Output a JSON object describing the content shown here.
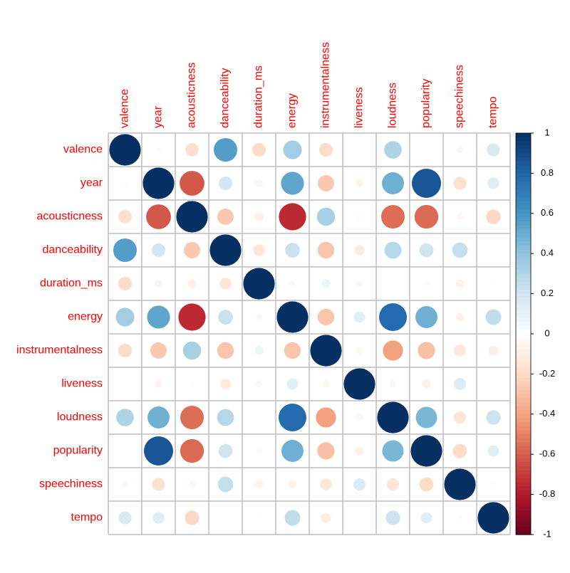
{
  "chart_data": {
    "type": "correlation",
    "variables": [
      "valence",
      "year",
      "acousticness",
      "danceability",
      "duration_ms",
      "energy",
      "instrumentalness",
      "liveness",
      "loudness",
      "popularity",
      "speechiness",
      "tempo"
    ],
    "values": [
      [
        1,
        0.02,
        -0.18,
        0.56,
        -0.19,
        0.35,
        -0.19,
        0.0,
        0.31,
        0.01,
        0.05,
        0.17
      ],
      [
        0.02,
        1,
        -0.62,
        0.19,
        0.06,
        0.53,
        -0.27,
        -0.06,
        0.49,
        0.86,
        -0.17,
        0.14
      ],
      [
        -0.18,
        -0.62,
        1,
        -0.27,
        -0.08,
        -0.75,
        0.33,
        -0.02,
        -0.56,
        -0.57,
        -0.05,
        -0.21
      ],
      [
        0.56,
        0.19,
        -0.27,
        1,
        -0.14,
        0.22,
        -0.28,
        -0.11,
        0.29,
        0.2,
        0.24,
        0.0
      ],
      [
        -0.19,
        0.06,
        -0.08,
        -0.14,
        1,
        0.04,
        0.08,
        0.05,
        0.0,
        0.03,
        -0.07,
        -0.01
      ],
      [
        0.35,
        0.53,
        -0.75,
        0.22,
        0.04,
        1,
        -0.28,
        0.13,
        0.78,
        0.49,
        -0.07,
        0.25
      ],
      [
        -0.19,
        -0.27,
        0.33,
        -0.28,
        0.08,
        -0.28,
        1,
        -0.05,
        -0.41,
        -0.3,
        -0.14,
        -0.1
      ],
      [
        0.0,
        -0.06,
        -0.02,
        -0.11,
        0.05,
        0.13,
        -0.05,
        1,
        0.05,
        -0.08,
        0.15,
        0.01
      ],
      [
        0.31,
        0.49,
        -0.56,
        0.29,
        0.0,
        0.78,
        -0.41,
        0.05,
        1,
        0.46,
        -0.15,
        0.21
      ],
      [
        0.01,
        0.86,
        -0.57,
        0.2,
        0.03,
        0.49,
        -0.3,
        -0.08,
        0.46,
        1,
        -0.2,
        0.13
      ],
      [
        0.05,
        -0.17,
        -0.05,
        0.24,
        -0.07,
        -0.07,
        -0.14,
        0.15,
        -0.15,
        -0.2,
        1,
        0.02
      ],
      [
        0.17,
        0.14,
        -0.21,
        0.0,
        -0.01,
        0.25,
        -0.1,
        0.01,
        0.21,
        0.13,
        0.02,
        1
      ]
    ],
    "clim": [
      -1,
      1
    ],
    "cticks": [
      1,
      0.8,
      0.6,
      0.4,
      0.2,
      0,
      -0.2,
      -0.4,
      -0.6,
      -0.8,
      -1
    ],
    "colors": [
      "#67001F",
      "#B2182B",
      "#D6604D",
      "#F4A582",
      "#FDDBC7",
      "#FFFFFF",
      "#D1E5F0",
      "#92C5DE",
      "#4393C3",
      "#2166AC",
      "#053061"
    ],
    "label_color": "#FF0000",
    "grid_color": "#BEBEBE"
  }
}
